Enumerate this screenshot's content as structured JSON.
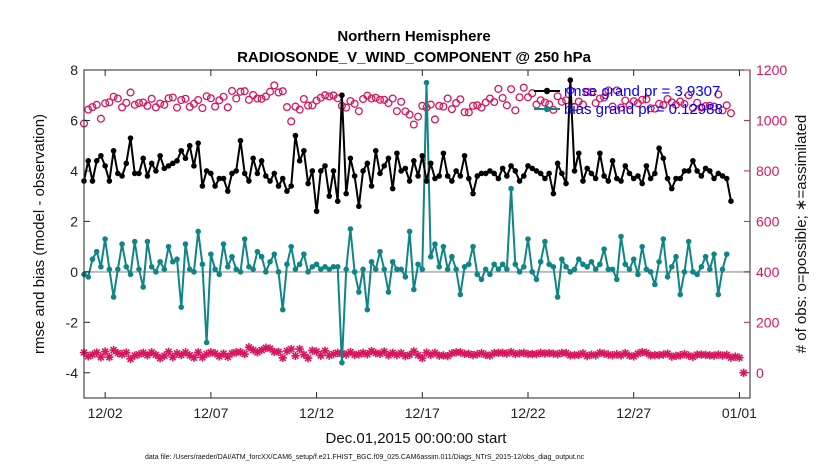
{
  "chart_data": {
    "type": "line",
    "title": "Northern Hemisphere",
    "subtitle": "RADIOSONDE_V_WIND_COMPONENT @ 250 hPa",
    "xlabel": "Dec.01,2015 00:00:00 start",
    "ylabel": "rmse and bias (model - observation)",
    "y2label": "# of obs: o=possible; ∗=assimilated",
    "footer": "data file: /Users/raeder/DAI/ATM_forcXX/CAM6_setup/f.e21.FHIST_BGC.f09_025.CAM6assim.011/Diags_NTrS_2015-12/obs_diag_output.nc",
    "xlim": [
      0,
      31.5
    ],
    "ylim": [
      -5,
      8
    ],
    "y2lim": [
      -100,
      1200
    ],
    "x_ticks": [
      1,
      6,
      11,
      16,
      21,
      26,
      31
    ],
    "x_tick_labels": [
      "12/02",
      "12/07",
      "12/12",
      "12/17",
      "12/22",
      "12/27",
      "01/01"
    ],
    "y_ticks": [
      -4,
      -2,
      0,
      2,
      4,
      6,
      8
    ],
    "y2_ticks": [
      0,
      200,
      400,
      600,
      800,
      1000,
      1200
    ],
    "colors": {
      "rmse": "#000000",
      "bias": "#108585",
      "obs": "#d6175e",
      "legend_text": "#0000ff",
      "zero_line": "#bbbbbb"
    },
    "legend": {
      "position": "top-right",
      "entries": [
        "rmse grand pr = 3.9307",
        "bias grand pr = 0.12988"
      ]
    },
    "series": [
      {
        "name": "rmse",
        "axis": "left",
        "marker": "filled-circle",
        "values": [
          3.6,
          4.4,
          3.6,
          4.4,
          4.6,
          4.2,
          3.6,
          4.8,
          3.9,
          3.8,
          4.3,
          5.3,
          3.9,
          3.9,
          4.5,
          3.8,
          4.3,
          4.0,
          4.6,
          4.1,
          4.2,
          4.3,
          4.4,
          4.8,
          4.5,
          5.0,
          4.2,
          5.1,
          3.4,
          4.0,
          3.9,
          3.4,
          3.7,
          3.7,
          3.2,
          3.9,
          4.0,
          5.2,
          3.9,
          3.6,
          4.5,
          3.9,
          4.4,
          3.8,
          3.6,
          3.9,
          3.4,
          3.7,
          3.2,
          3.4,
          5.4,
          4.4,
          4.8,
          3.5,
          4.0,
          2.4,
          4.0,
          4.2,
          3.0,
          4.0,
          2.8,
          7.0,
          3.1,
          4.5,
          3.8,
          2.6,
          4.0,
          4.3,
          3.4,
          4.8,
          3.9,
          4.2,
          4.5,
          3.3,
          4.7,
          4.0,
          4.1,
          3.6,
          4.4,
          3.8,
          4.6,
          3.6,
          4.3,
          3.7,
          3.8,
          4.7,
          3.8,
          3.6,
          4.0,
          3.8,
          4.6,
          3.7,
          3.1,
          3.8,
          3.9,
          3.9,
          4.0,
          3.9,
          3.7,
          4.1,
          3.8,
          4.2,
          4.0,
          3.6,
          3.8,
          4.2,
          4.1,
          4.0,
          3.9,
          3.7,
          3.9,
          3.1,
          4.3,
          3.9,
          3.5,
          7.6,
          4.0,
          4.7,
          3.6,
          4.1,
          3.9,
          3.7,
          4.7,
          3.8,
          3.6,
          4.4,
          3.7,
          3.6,
          4.2,
          3.9,
          3.7,
          3.8,
          3.5,
          4.2,
          3.7,
          3.9,
          4.9,
          4.5,
          3.7,
          3.3,
          3.7,
          3.7,
          4.0,
          4.0,
          4.4,
          4.0,
          3.8,
          4.1,
          4.0,
          3.7,
          3.9,
          3.8,
          3.7,
          2.8
        ]
      },
      {
        "name": "bias",
        "axis": "left",
        "marker": "filled-circle",
        "values": [
          -0.1,
          -0.2,
          0.5,
          0.8,
          0.2,
          1.3,
          0.1,
          -1.0,
          0.1,
          1.1,
          0.2,
          -0.1,
          1.2,
          0.1,
          -0.6,
          1.2,
          0.2,
          0.0,
          0.4,
          0.1,
          1.0,
          0.4,
          0.5,
          -1.4,
          1.1,
          0.1,
          0.0,
          1.6,
          0.3,
          -2.8,
          0.7,
          0.1,
          -0.1,
          1.1,
          0.2,
          0.6,
          0.1,
          0.0,
          1.3,
          0.2,
          0.1,
          0.8,
          0.6,
          0.0,
          0.4,
          0.7,
          0.0,
          -1.5,
          0.3,
          1.0,
          0.1,
          0.3,
          0.7,
          0.0,
          0.2,
          0.3,
          0.1,
          0.2,
          0.1,
          0.2,
          0.2,
          -3.6,
          0.1,
          1.7,
          0.0,
          -0.8,
          0.1,
          -1.5,
          0.4,
          0.1,
          0.8,
          0.1,
          -0.8,
          0.4,
          0.1,
          0.1,
          -0.2,
          1.6,
          -0.7,
          0.3,
          0.1,
          7.5,
          0.6,
          1.1,
          0.2,
          1.0,
          0.1,
          0.6,
          0.1,
          -0.9,
          0.2,
          0.3,
          1.0,
          -0.1,
          -0.3,
          0.1,
          -0.1,
          0.3,
          0.1,
          0.3,
          0.1,
          3.3,
          0.3,
          0.0,
          0.2,
          1.3,
          0.0,
          -0.3,
          0.4,
          1.2,
          0.3,
          0.2,
          -1.0,
          0.5,
          0.2,
          0.0,
          0.1,
          0.5,
          0.3,
          0.2,
          0.4,
          0.1,
          0.3,
          0.9,
          0.1,
          0.1,
          -0.3,
          1.4,
          0.3,
          0.1,
          0.5,
          -0.1,
          1.0,
          0.1,
          0.0,
          -0.5,
          0.4,
          1.3,
          -0.2,
          0.2,
          0.6,
          -0.9,
          0.0,
          1.2,
          0.0,
          -0.1,
          0.2,
          0.6,
          0.1,
          0.7,
          -0.9,
          0.1,
          0.7
        ]
      },
      {
        "name": "obs_possible",
        "axis": "right",
        "marker": "open-circle",
        "values": [
          988,
          1043,
          1053,
          1062,
          1007,
          1068,
          1072,
          1094,
          1087,
          1052,
          1070,
          1111,
          1062,
          1069,
          1071,
          1058,
          1086,
          1052,
          1067,
          1062,
          1088,
          1091,
          1051,
          1081,
          1086,
          1054,
          1066,
          1081,
          1049,
          1096,
          1088,
          1055,
          1080,
          1094,
          1052,
          1117,
          1087,
          1114,
          1116,
          1082,
          1101,
          1087,
          1086,
          1095,
          1114,
          1139,
          1111,
          1116,
          1053,
          996,
          1055,
          1043,
          1085,
          1059,
          1060,
          1079,
          1090,
          1100,
          1095,
          1099,
          1088,
          1058,
          1051,
          1077,
          1066,
          1037,
          1085,
          1098,
          1087,
          1090,
          1082,
          1082,
          1069,
          1087,
          1037,
          1074,
          1036,
          1023,
          984,
          1015,
          1058,
          1051,
          1063,
          1004,
          1058,
          1055,
          1087,
          1045,
          1069,
          1084,
          1033,
          1032,
          1058,
          1060,
          1051,
          1071,
          1087,
          1073,
          1125,
          1089,
          1060,
          1124,
          1040,
          1092,
          1130,
          1092,
          1108,
          1063,
          1080,
          1071,
          1064,
          1042,
          1096,
          1074,
          1080,
          1119,
          1053,
          1075,
          1063,
          1113,
          1112,
          1069,
          1087,
          1091,
          1119,
          1055,
          1119,
          1051,
          1079,
          1060,
          1076,
          1068,
          1082,
          1084,
          1048,
          1047,
          1066,
          1061,
          1085,
          1072,
          1062,
          1075,
          1065,
          1100,
          1050,
          1070,
          1051,
          1057,
          1058,
          1055,
          1103,
          1040,
          1060,
          1029
        ]
      },
      {
        "name": "obs_assimilated",
        "axis": "right",
        "marker": "asterisk",
        "values": [
          80,
          65,
          72,
          80,
          62,
          84,
          62,
          90,
          78,
          73,
          80,
          55,
          68,
          73,
          79,
          69,
          81,
          71,
          58,
          67,
          83,
          62,
          77,
          70,
          81,
          69,
          60,
          81,
          61,
          74,
          81,
          77,
          65,
          76,
          63,
          77,
          81,
          82,
          74,
          101,
          90,
          81,
          90,
          99,
          96,
          83,
          83,
          59,
          86,
          94,
          67,
          94,
          72,
          58,
          88,
          84,
          68,
          87,
          68,
          74,
          79,
          76,
          72,
          82,
          71,
          73,
          79,
          73,
          86,
          78,
          75,
          84,
          69,
          79,
          70,
          78,
          66,
          71,
          85,
          70,
          58,
          80,
          71,
          79,
          68,
          69,
          66,
          77,
          81,
          81,
          75,
          75,
          70,
          73,
          78,
          71,
          68,
          78,
          79,
          79,
          76,
          82,
          74,
          77,
          79,
          74,
          74,
          74,
          79,
          76,
          78,
          76,
          73,
          79,
          78,
          69,
          70,
          71,
          77,
          66,
          72,
          69,
          79,
          76,
          72,
          69,
          73,
          69,
          78,
          68,
          65,
          76,
          82,
          79,
          69,
          70,
          70,
          72,
          76,
          64,
          67,
          69,
          74,
          68,
          63,
          72,
          72,
          71,
          69,
          68,
          72,
          68,
          71,
          60,
          64,
          60,
          0
        ]
      }
    ]
  }
}
